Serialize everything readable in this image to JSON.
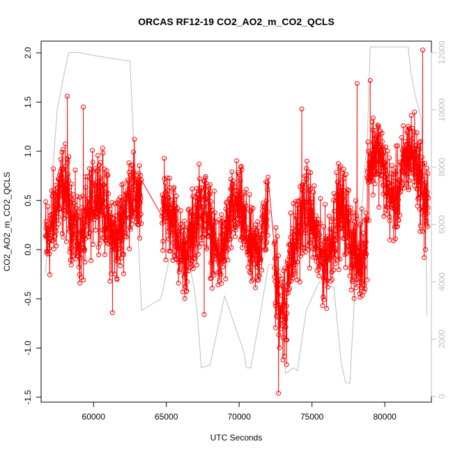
{
  "chart_data": {
    "type": "line",
    "title": "ORCAS RF12-19 CO2_AO2_m_CO2_QCLS",
    "xlabel": "UTC Seconds",
    "ylabel": "CO2_AO2_m_CO2_QCLS",
    "xlim": [
      56400,
      83200
    ],
    "ylim": [
      -1.55,
      2.12
    ],
    "x_ticks": [
      "60000",
      "65000",
      "70000",
      "75000",
      "80000"
    ],
    "y_ticks": [
      "-1.5",
      "-1.0",
      "-0.5",
      "0.0",
      "0.5",
      "1.0",
      "1.5",
      "2.0"
    ],
    "y2lim": [
      -200,
      12400
    ],
    "y2_ticks": [
      "0",
      "2000",
      "4000",
      "6000",
      "8000",
      "10000",
      "12000"
    ],
    "grid": false,
    "legend": "none",
    "series": [
      {
        "color": "#ff0000",
        "style": "line-with-open-circles",
        "segments": [
          {
            "x_range": [
              56700,
              63300
            ],
            "center": 0.35,
            "spread": 0.38
          },
          {
            "x_range": [
              64700,
              72000
            ],
            "center": 0.2,
            "spread": 0.35
          },
          {
            "x_range": [
              72400,
              73300
            ],
            "center": -0.5,
            "spread": 0.45
          },
          {
            "x_range": [
              73300,
              78800
            ],
            "center": 0.15,
            "spread": 0.38
          },
          {
            "x_range": [
              78800,
              83000
            ],
            "center": 0.75,
            "spread": 0.35
          }
        ],
        "extremes": [
          {
            "x": 58200,
            "y": 1.56
          },
          {
            "x": 59300,
            "y": 1.45
          },
          {
            "x": 61300,
            "y": -0.64
          },
          {
            "x": 67600,
            "y": -0.66
          },
          {
            "x": 72700,
            "y": -1.46
          },
          {
            "x": 74300,
            "y": 1.43
          },
          {
            "x": 78100,
            "y": 1.69
          },
          {
            "x": 79000,
            "y": 1.72
          },
          {
            "x": 82600,
            "y": 2.03
          },
          {
            "x": 82700,
            "y": -0.08
          },
          {
            "x": 82800,
            "y": 0.0
          }
        ]
      },
      {
        "color": "#bdbdbd",
        "axis": "right",
        "x": [
          56700,
          57000,
          57500,
          58000,
          58300,
          59000,
          60000,
          62500,
          62700,
          63300,
          64600,
          64800,
          65200,
          66500,
          66900,
          67100,
          67400,
          68000,
          69000,
          70300,
          70500,
          70800,
          71500,
          72000,
          72400,
          72800,
          73200,
          73700,
          74000,
          74600,
          75500,
          76500,
          77000,
          77300,
          77600,
          78000,
          78800,
          79000,
          80000,
          81000,
          81600,
          81800,
          82100,
          82500,
          82800,
          82900
        ],
        "y": [
          4300,
          6500,
          10000,
          11300,
          12000,
          12000,
          11900,
          11700,
          9500,
          3000,
          3400,
          3800,
          4800,
          4800,
          3800,
          3000,
          1000,
          1100,
          3500,
          1600,
          1000,
          1000,
          3000,
          4600,
          4600,
          2500,
          800,
          1000,
          900,
          3000,
          4000,
          3800,
          1200,
          500,
          450,
          4200,
          9000,
          12200,
          12200,
          12200,
          12200,
          11300,
          10500,
          9700,
          6000,
          2800
        ]
      }
    ]
  }
}
